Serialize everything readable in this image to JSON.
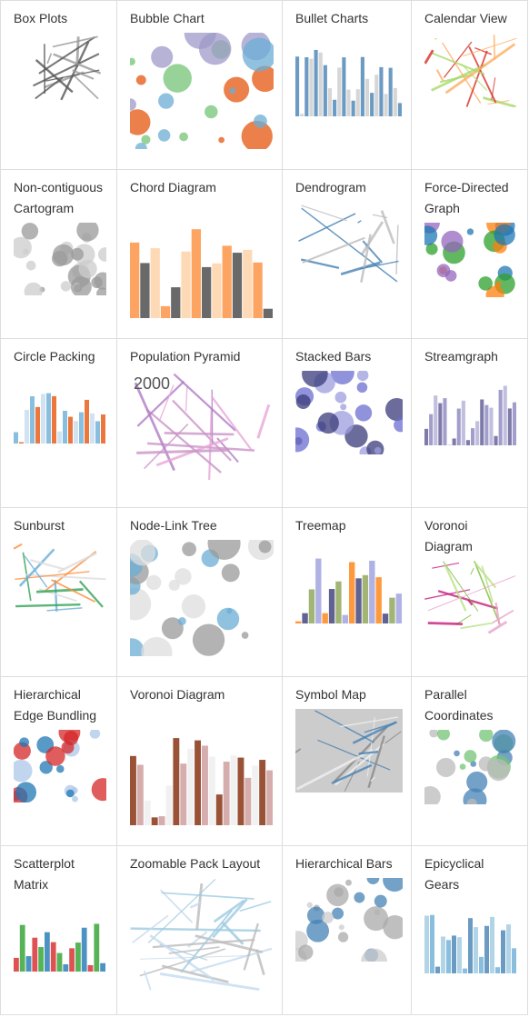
{
  "cells": [
    {
      "title": "Box Plots"
    },
    {
      "title": "Bubble Chart"
    },
    {
      "title": "Bullet Charts"
    },
    {
      "title": "Calendar View"
    },
    {
      "title": "Non-contiguous Cartogram"
    },
    {
      "title": "Chord Diagram"
    },
    {
      "title": "Dendrogram"
    },
    {
      "title": "Force-Directed Graph"
    },
    {
      "title": "Circle Packing"
    },
    {
      "title": "Population Pyramid",
      "caption": "2000"
    },
    {
      "title": "Stacked Bars"
    },
    {
      "title": "Streamgraph"
    },
    {
      "title": "Sunburst"
    },
    {
      "title": "Node-Link Tree"
    },
    {
      "title": "Treemap"
    },
    {
      "title": "Voronoi Diagram"
    },
    {
      "title": "Hierarchical Edge Bundling"
    },
    {
      "title": "Voronoi Diagram"
    },
    {
      "title": "Symbol Map"
    },
    {
      "title": "Parallel Coordinates"
    },
    {
      "title": "Scatterplot Matrix"
    },
    {
      "title": "Zoomable Pack Layout"
    },
    {
      "title": "Hierarchical Bars"
    },
    {
      "title": "Epicyclical Gears"
    }
  ]
}
